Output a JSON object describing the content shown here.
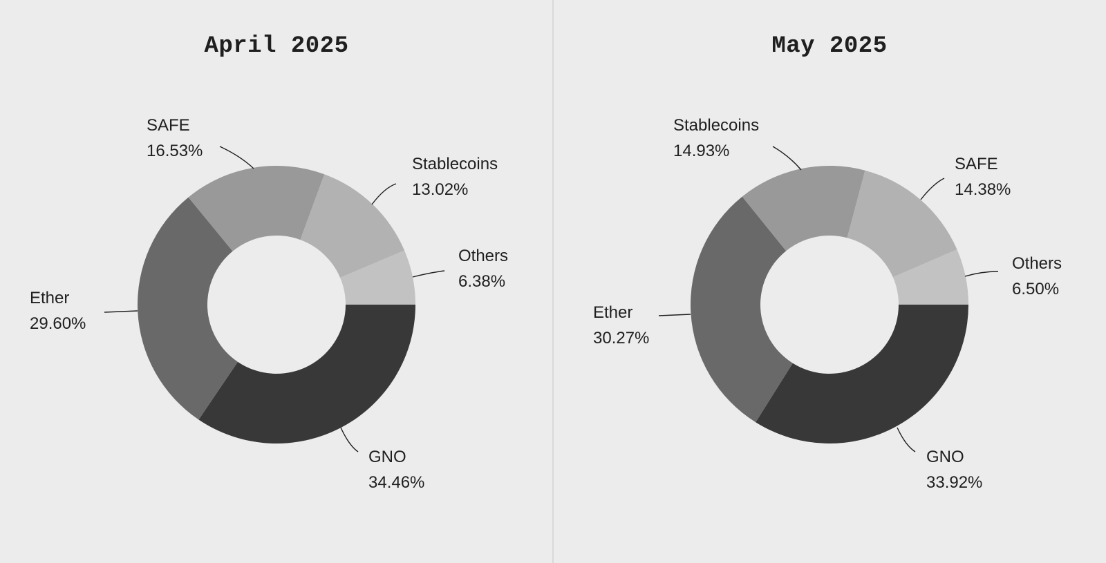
{
  "chart_data": [
    {
      "type": "pie",
      "title": "April 2025",
      "slices": [
        {
          "label": "GNO",
          "value": 34.46,
          "display": "34.46%",
          "color": "#383838"
        },
        {
          "label": "Ether",
          "value": 29.6,
          "display": "29.60%",
          "color": "#696969"
        },
        {
          "label": "SAFE",
          "value": 16.53,
          "display": "16.53%",
          "color": "#999999"
        },
        {
          "label": "Stablecoins",
          "value": 13.02,
          "display": "13.02%",
          "color": "#b2b2b2"
        },
        {
          "label": "Others",
          "value": 6.38,
          "display": "6.38%",
          "color": "#c2c2c2"
        }
      ]
    },
    {
      "type": "pie",
      "title": "May 2025",
      "slices": [
        {
          "label": "GNO",
          "value": 33.92,
          "display": "33.92%",
          "color": "#383838"
        },
        {
          "label": "Ether",
          "value": 30.27,
          "display": "30.27%",
          "color": "#696969"
        },
        {
          "label": "Stablecoins",
          "value": 14.93,
          "display": "14.93%",
          "color": "#999999"
        },
        {
          "label": "SAFE",
          "value": 14.38,
          "display": "14.38%",
          "color": "#b2b2b2"
        },
        {
          "label": "Others",
          "value": 6.5,
          "display": "6.50%",
          "color": "#c2c2c2"
        }
      ]
    }
  ]
}
